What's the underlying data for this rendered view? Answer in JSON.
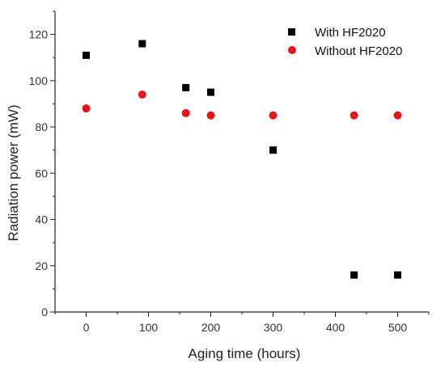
{
  "chart_data": {
    "type": "scatter",
    "xlabel": "Aging time (hours)",
    "ylabel": "Radiation power (mW)",
    "xlim": [
      -50,
      550
    ],
    "ylim": [
      0,
      130
    ],
    "xticks": [
      0,
      100,
      200,
      300,
      400,
      500
    ],
    "yticks": [
      0,
      20,
      40,
      60,
      80,
      100,
      120
    ],
    "grid": false,
    "legend_position": "top-right",
    "series": [
      {
        "name": "With HF2020",
        "marker": "square",
        "color": "#000000",
        "x": [
          0,
          90,
          160,
          200,
          300,
          430,
          500
        ],
        "y": [
          111,
          116,
          97,
          95,
          70,
          16,
          16
        ]
      },
      {
        "name": "Without HF2020",
        "marker": "circle",
        "color": "#e8141c",
        "x": [
          0,
          90,
          160,
          200,
          300,
          430,
          500
        ],
        "y": [
          88,
          94,
          86,
          85,
          85,
          85,
          85
        ]
      }
    ]
  }
}
